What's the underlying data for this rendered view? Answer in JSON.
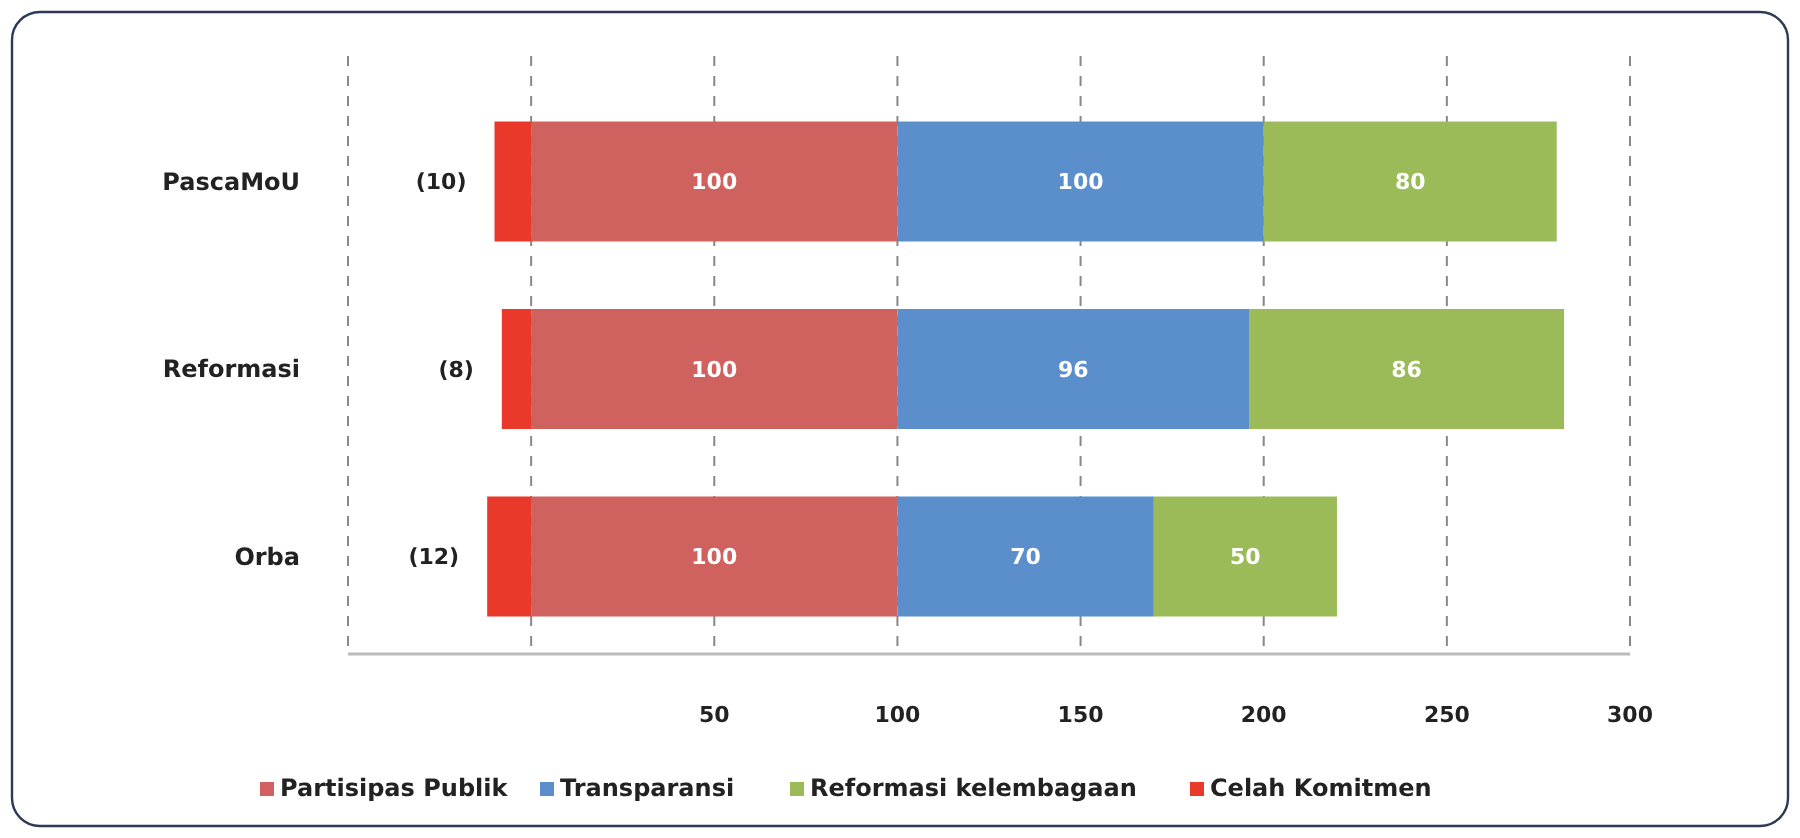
{
  "chart_data": {
    "type": "bar",
    "orientation": "horizontal",
    "stacked": true,
    "categories": [
      "PascaMoU",
      "Reformasi",
      "Orba"
    ],
    "series": [
      {
        "name": "Partisipas Publik",
        "color": "#cf625e",
        "values": [
          100,
          100,
          100
        ],
        "value_labels": [
          "100",
          "100",
          "100"
        ]
      },
      {
        "name": "Transparansi",
        "color": "#5b8fcb",
        "values": [
          100,
          96,
          70
        ],
        "value_labels": [
          "100",
          "96",
          "70"
        ]
      },
      {
        "name": "Reformasi kelembagaan",
        "color": "#9bbb59",
        "values": [
          80,
          86,
          50
        ],
        "value_labels": [
          "80",
          "86",
          "50"
        ]
      },
      {
        "name": "Celah Komitmen",
        "color": "#e8392a",
        "values": [
          -10,
          -8,
          -12
        ],
        "value_labels": [
          "(10)",
          "(8)",
          "(12)"
        ]
      }
    ],
    "xlim": [
      -50,
      300
    ],
    "xticks": [
      {
        "value": -50,
        "label": null
      },
      {
        "value": 0,
        "label": null
      },
      50,
      100,
      150,
      200,
      250,
      300
    ],
    "grid": "x",
    "legend": "bottom"
  }
}
